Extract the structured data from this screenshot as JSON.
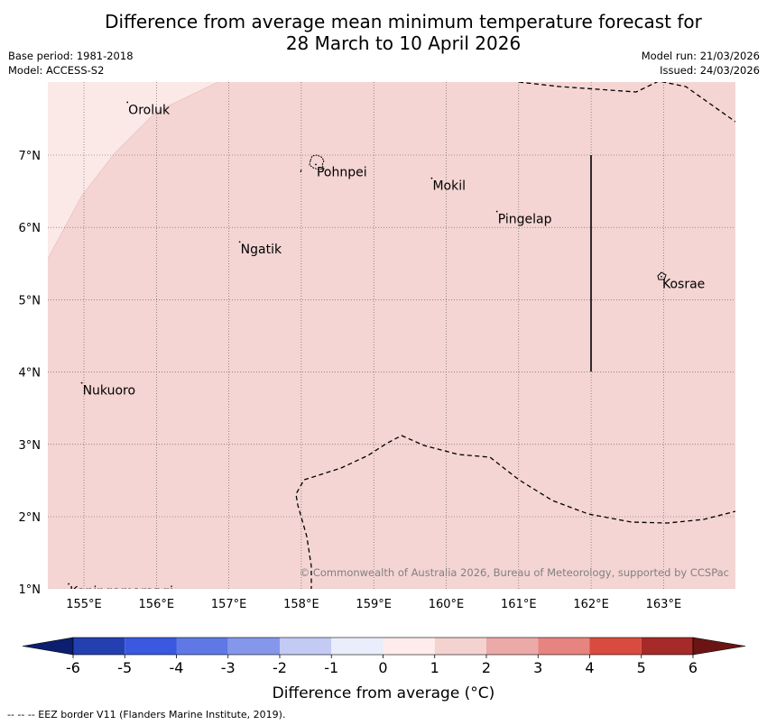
{
  "header": {
    "title_line1": "Difference from average mean minimum temperature forecast for",
    "title_line2": "28 March to 10 April 2026",
    "base_period": "Base period: 1981-2018",
    "model": "Model: ACCESS-S2",
    "model_run": "Model run: 21/03/2026",
    "issued": "Issued: 24/03/2026"
  },
  "map": {
    "lon_labels": [
      "155°E",
      "156°E",
      "157°E",
      "158°E",
      "159°E",
      "160°E",
      "161°E",
      "162°E",
      "163°E"
    ],
    "lat_labels": [
      "7°N",
      "6°N",
      "5°N",
      "4°N",
      "3°N",
      "2°N",
      "1°N"
    ],
    "places": [
      {
        "name": "Oroluk",
        "lon": 155.6,
        "lat": 7.73
      },
      {
        "name": "Pohnpei",
        "lon": 158.2,
        "lat": 6.87
      },
      {
        "name": "Mokil",
        "lon": 159.8,
        "lat": 6.68
      },
      {
        "name": "Pingelap",
        "lon": 160.7,
        "lat": 6.22
      },
      {
        "name": "Ngatik",
        "lon": 157.15,
        "lat": 5.8
      },
      {
        "name": "Kosrae",
        "lon": 162.97,
        "lat": 5.32
      },
      {
        "name": "Nukuoro",
        "lon": 154.97,
        "lat": 3.85
      },
      {
        "name": "Kapingamarangi",
        "lon": 154.79,
        "lat": 1.07
      }
    ],
    "copyright": "© Commonwealth of Australia 2026, Bureau of Meteorology, supported by CCSPac",
    "colors": {
      "main_fill": "#f4d5d3",
      "light_fill": "#fbe9e7"
    }
  },
  "colorbar": {
    "tick_labels": [
      "-6",
      "-5",
      "-4",
      "-3",
      "-2",
      "-1",
      "0",
      "1",
      "2",
      "3",
      "4",
      "5",
      "6"
    ],
    "colors": [
      "#0c1e6e",
      "#2440b0",
      "#3a58e0",
      "#5f78e6",
      "#8597ea",
      "#c3caf3",
      "#eaedfb",
      "#fdecea",
      "#f4d2d0",
      "#eba9a7",
      "#e7847f",
      "#d94a3f",
      "#a52a28",
      "#6a1414"
    ],
    "label": "Difference from average (°C)"
  },
  "footer": {
    "legend_text": "--  --  -- EEZ border V11 (Flanders Marine Institute, 2019)."
  }
}
